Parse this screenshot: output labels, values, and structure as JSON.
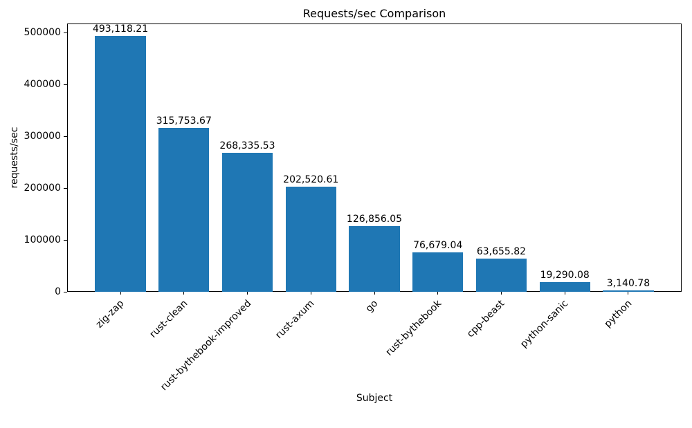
{
  "chart_data": {
    "type": "bar",
    "title": "Requests/sec Comparison",
    "xlabel": "Subject",
    "ylabel": "requests/sec",
    "categories": [
      "zig-zap",
      "rust-clean",
      "rust-bythebook-improved",
      "rust-axum",
      "go",
      "rust-bythebook",
      "cpp-beast",
      "python-sanic",
      "python"
    ],
    "values": [
      493118.21,
      315753.67,
      268335.53,
      202520.61,
      126856.05,
      76679.04,
      63655.82,
      19290.08,
      3140.78
    ],
    "value_labels": [
      "493,118.21",
      "315,753.67",
      "268,335.53",
      "202,520.61",
      "126,856.05",
      "76,679.04",
      "63,655.82",
      "19,290.08",
      "3,140.78"
    ],
    "yticks": [
      0,
      100000,
      200000,
      300000,
      400000,
      500000
    ],
    "ytick_labels": [
      "0",
      "100000",
      "200000",
      "300000",
      "400000",
      "500000"
    ],
    "ylim": [
      0,
      517774
    ],
    "bar_color": "#1f77b4",
    "bar_width_fraction": 0.8,
    "grid": false,
    "legend": null,
    "x_tick_rotation_deg": 45
  }
}
